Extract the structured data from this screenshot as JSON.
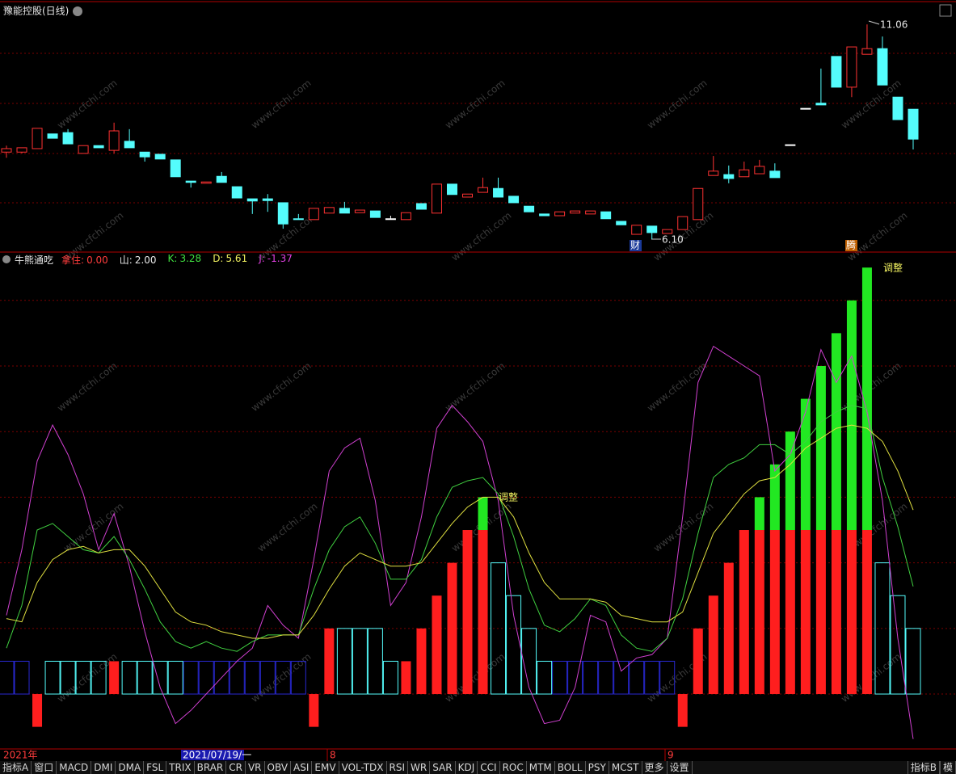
{
  "price_panel": {
    "title": "豫能控股(日线)",
    "ylim": [
      5.8,
      11.4
    ],
    "up_color": "#ff3232",
    "down_color": "#54fcfc",
    "flat_color": "#ffffff",
    "candles": [
      [
        8.11,
        8.26,
        7.98,
        8.19
      ],
      [
        8.11,
        8.21,
        8.08,
        8.21
      ],
      [
        8.19,
        8.66,
        8.19,
        8.66
      ],
      [
        8.53,
        8.53,
        8.43,
        8.43
      ],
      [
        8.56,
        8.64,
        8.3,
        8.3
      ],
      [
        8.08,
        8.26,
        8.08,
        8.26
      ],
      [
        8.26,
        8.26,
        8.21,
        8.21
      ],
      [
        8.15,
        8.79,
        8.08,
        8.6
      ],
      [
        8.36,
        8.64,
        8.21,
        8.21
      ],
      [
        8.11,
        8.11,
        7.89,
        8.0
      ],
      [
        8.06,
        8.06,
        7.95,
        7.95
      ],
      [
        7.93,
        7.93,
        7.54,
        7.54
      ],
      [
        7.44,
        7.44,
        7.29,
        7.41
      ],
      [
        7.39,
        7.42,
        7.39,
        7.42
      ],
      [
        7.55,
        7.65,
        7.41,
        7.41
      ],
      [
        7.31,
        7.31,
        7.05,
        7.05
      ],
      [
        7.03,
        7.03,
        6.68,
        6.98
      ],
      [
        7.03,
        7.14,
        6.73,
        6.99
      ],
      [
        6.94,
        6.94,
        6.34,
        6.45
      ],
      [
        6.57,
        6.68,
        6.55,
        6.55
      ],
      [
        6.55,
        6.81,
        6.55,
        6.81
      ],
      [
        6.7,
        6.83,
        6.7,
        6.83
      ],
      [
        6.81,
        6.96,
        6.7,
        6.7
      ],
      [
        6.71,
        6.77,
        6.71,
        6.77
      ],
      [
        6.75,
        6.75,
        6.6,
        6.6
      ],
      [
        6.57,
        6.64,
        6.55,
        6.57
      ],
      [
        6.55,
        6.71,
        6.55,
        6.71
      ],
      [
        6.92,
        6.92,
        6.79,
        6.79
      ],
      [
        6.7,
        7.37,
        6.7,
        7.37
      ],
      [
        7.37,
        7.37,
        7.13,
        7.13
      ],
      [
        7.07,
        7.14,
        7.07,
        7.14
      ],
      [
        7.18,
        7.52,
        7.18,
        7.29
      ],
      [
        7.27,
        7.52,
        7.07,
        7.07
      ],
      [
        7.09,
        7.09,
        6.94,
        6.94
      ],
      [
        6.86,
        6.86,
        6.73,
        6.73
      ],
      [
        6.68,
        6.68,
        6.64,
        6.64
      ],
      [
        6.64,
        6.73,
        6.64,
        6.73
      ],
      [
        6.7,
        6.75,
        6.7,
        6.75
      ],
      [
        6.68,
        6.75,
        6.68,
        6.75
      ],
      [
        6.73,
        6.73,
        6.57,
        6.57
      ],
      [
        6.51,
        6.51,
        6.43,
        6.43
      ],
      [
        6.21,
        6.42,
        6.21,
        6.42
      ],
      [
        6.4,
        6.4,
        6.1,
        6.25
      ],
      [
        6.23,
        6.32,
        6.23,
        6.32
      ],
      [
        6.32,
        6.62,
        6.32,
        6.62
      ],
      [
        6.55,
        7.27,
        6.55,
        7.27
      ],
      [
        7.57,
        8.02,
        7.57,
        7.67
      ],
      [
        7.59,
        7.8,
        7.39,
        7.5
      ],
      [
        7.54,
        7.89,
        7.54,
        7.7
      ],
      [
        7.61,
        7.93,
        7.61,
        7.78
      ],
      [
        7.67,
        7.85,
        7.52,
        7.52
      ],
      [
        8.28,
        8.28,
        8.28,
        8.28
      ],
      [
        9.12,
        9.12,
        9.12,
        9.12
      ],
      [
        9.24,
        10.04,
        9.2,
        9.2
      ],
      [
        10.32,
        10.32,
        9.61,
        9.61
      ],
      [
        9.61,
        10.54,
        9.38,
        10.54
      ],
      [
        10.37,
        11.06,
        10.37,
        10.5
      ],
      [
        10.5,
        10.78,
        9.66,
        9.66
      ],
      [
        9.38,
        9.38,
        8.86,
        8.86
      ],
      [
        9.1,
        9.1,
        8.17,
        8.41
      ]
    ],
    "low_label": "6.10",
    "high_label": "11.06",
    "event_tags": [
      "财",
      "腾"
    ]
  },
  "indicator_panel": {
    "title": "牛熊通吃",
    "readouts": [
      {
        "label": "拿住:",
        "value": "0.00",
        "color": "#ff3c3c"
      },
      {
        "label": "山:",
        "value": "2.00",
        "color": "#e8e8e8"
      },
      {
        "label": "K:",
        "value": "3.28",
        "color": "#40e040"
      },
      {
        "label": "D:",
        "value": "5.61",
        "color": "#f0f060"
      },
      {
        "label": "J:",
        "value": "-1.37",
        "color": "#e040e0"
      }
    ],
    "ylim": [
      -1.6,
      13.3
    ],
    "yticks": [
      0,
      2,
      4,
      6,
      8,
      10,
      12
    ],
    "red_bars": {
      "color": "#ff1e1e",
      "values": [
        null,
        null,
        -1,
        null,
        null,
        null,
        null,
        1,
        null,
        null,
        null,
        null,
        null,
        null,
        null,
        null,
        null,
        null,
        null,
        null,
        -1,
        2,
        null,
        null,
        null,
        null,
        1,
        2,
        3,
        4,
        5,
        5,
        null,
        null,
        null,
        null,
        null,
        null,
        null,
        null,
        null,
        null,
        null,
        null,
        -1,
        2,
        3,
        4,
        5,
        5,
        5,
        5,
        5,
        5,
        5,
        5,
        5,
        null,
        null,
        null
      ]
    },
    "green_bars": {
      "color": "#22e822",
      "values": [
        null,
        null,
        null,
        null,
        null,
        null,
        null,
        null,
        null,
        null,
        null,
        null,
        null,
        null,
        null,
        null,
        null,
        null,
        null,
        null,
        null,
        null,
        null,
        null,
        null,
        null,
        null,
        null,
        null,
        null,
        null,
        1,
        null,
        null,
        null,
        null,
        null,
        null,
        null,
        null,
        null,
        null,
        null,
        null,
        null,
        null,
        null,
        null,
        null,
        1,
        2,
        3,
        4,
        5,
        6,
        7,
        8,
        null,
        null,
        null
      ]
    },
    "cyan_boxes": {
      "color": "#54fcfc",
      "values": [
        null,
        null,
        null,
        1,
        1,
        1,
        1,
        null,
        1,
        1,
        1,
        1,
        null,
        null,
        null,
        null,
        null,
        null,
        null,
        null,
        null,
        null,
        2,
        2,
        2,
        1,
        null,
        null,
        null,
        null,
        null,
        null,
        4,
        3,
        2,
        1,
        null,
        null,
        null,
        null,
        null,
        null,
        null,
        null,
        null,
        null,
        null,
        null,
        null,
        null,
        null,
        null,
        null,
        null,
        null,
        null,
        null,
        4,
        3,
        2
      ]
    },
    "blue_boxes": {
      "color": "#2828d0",
      "values": [
        1,
        1,
        null,
        null,
        null,
        null,
        null,
        null,
        null,
        null,
        null,
        null,
        1,
        1,
        1,
        1,
        1,
        1,
        1,
        1,
        null,
        null,
        null,
        null,
        null,
        null,
        null,
        null,
        null,
        null,
        null,
        null,
        null,
        null,
        null,
        null,
        1,
        1,
        1,
        1,
        1,
        1,
        1,
        1,
        null,
        null,
        null,
        null,
        null,
        null,
        null,
        null,
        null,
        null,
        null,
        null,
        null,
        null,
        null,
        null
      ]
    },
    "lines": [
      {
        "color": "#d040d0",
        "values": [
          2.4,
          4.4,
          7.1,
          8.2,
          7.3,
          6.1,
          4.4,
          5.5,
          3.9,
          1.9,
          0.2,
          -0.9,
          -0.5,
          0,
          0.5,
          1.0,
          1.4,
          2.7,
          2.1,
          1.7,
          4.1,
          6.8,
          7.5,
          7.8,
          5.9,
          2.7,
          3.4,
          5.4,
          8.1,
          8.8,
          8.3,
          7.7,
          5.9,
          2.4,
          0.2,
          -0.9,
          -0.8,
          0.2,
          2.4,
          2.2,
          0.7,
          1.1,
          1.2,
          1.7,
          5.4,
          9.5,
          10.6,
          10.3,
          10.0,
          9.7,
          6.8,
          7.3,
          8.6,
          10.5,
          9.5,
          10.3,
          8.6,
          5.9,
          1.7,
          -1.37
        ]
      },
      {
        "color": "#40d040",
        "values": [
          1.4,
          2.7,
          5.0,
          5.2,
          4.8,
          4.4,
          4.3,
          4.8,
          4.1,
          3.2,
          2.2,
          1.6,
          1.4,
          1.6,
          1.4,
          1.3,
          1.6,
          1.8,
          1.8,
          1.8,
          3.2,
          4.4,
          5.1,
          5.4,
          4.6,
          3.5,
          3.5,
          4.1,
          5.4,
          6.3,
          6.5,
          6.6,
          6.1,
          4.8,
          3.2,
          2.1,
          1.9,
          2.3,
          2.9,
          2.7,
          1.8,
          1.4,
          1.3,
          1.7,
          2.9,
          4.9,
          6.6,
          7.0,
          7.2,
          7.6,
          7.6,
          7.3,
          7.7,
          8.3,
          8.6,
          8.8,
          8.7,
          6.6,
          5.1,
          3.28
        ]
      },
      {
        "color": "#e0e040",
        "values": [
          2.3,
          2.2,
          3.4,
          4.1,
          4.4,
          4.5,
          4.3,
          4.4,
          4.4,
          3.9,
          3.2,
          2.5,
          2.2,
          2.1,
          1.9,
          1.8,
          1.7,
          1.7,
          1.8,
          1.8,
          2.4,
          3.2,
          3.9,
          4.3,
          4.1,
          3.9,
          3.9,
          4.0,
          4.6,
          5.2,
          5.7,
          6.0,
          6.0,
          5.4,
          4.3,
          3.4,
          2.9,
          2.9,
          2.9,
          2.8,
          2.4,
          2.3,
          2.2,
          2.2,
          2.5,
          3.7,
          4.9,
          5.5,
          6.1,
          6.5,
          6.6,
          7.0,
          7.5,
          7.8,
          8.1,
          8.2,
          8.1,
          7.7,
          6.8,
          5.61
        ]
      }
    ],
    "annotations": [
      "调整",
      "调整"
    ]
  },
  "date_axis": [
    "2021年",
    "2021/07/19/一",
    "8",
    "9"
  ],
  "watermark": "www.cfchi.com",
  "toolbar": {
    "tabs": [
      "指标A",
      "窗口",
      "MACD",
      "DMI",
      "DMA",
      "FSL",
      "TRIX",
      "BRAR",
      "CR",
      "VR",
      "OBV",
      "ASI",
      "EMV",
      "VOL-TDX",
      "RSI",
      "WR",
      "SAR",
      "KDJ",
      "CCI",
      "ROC",
      "MTM",
      "BOLL",
      "PSY",
      "MCST",
      "更多",
      "设置"
    ],
    "right": [
      "指标B",
      "模"
    ]
  }
}
